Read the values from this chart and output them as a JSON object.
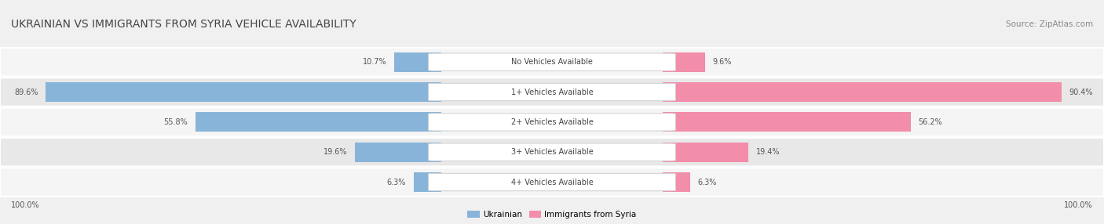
{
  "title": "Ukrainian vs Immigrants from Syria Vehicle Availability",
  "source": "Source: ZipAtlas.com",
  "categories": [
    "No Vehicles Available",
    "1+ Vehicles Available",
    "2+ Vehicles Available",
    "3+ Vehicles Available",
    "4+ Vehicles Available"
  ],
  "ukrainian": [
    10.7,
    89.6,
    55.8,
    19.6,
    6.3
  ],
  "syria": [
    9.6,
    90.4,
    56.2,
    19.4,
    6.3
  ],
  "ukrainian_color": "#89b4d9",
  "syria_color": "#f28daa",
  "fig_bg": "#f0f0f0",
  "row_bg_light": "#f5f5f5",
  "row_bg_dark": "#e8e8e8",
  "title_color": "#444444",
  "label_color": "#555555",
  "source_color": "#888888",
  "figsize": [
    14.06,
    2.86
  ],
  "dpi": 100
}
